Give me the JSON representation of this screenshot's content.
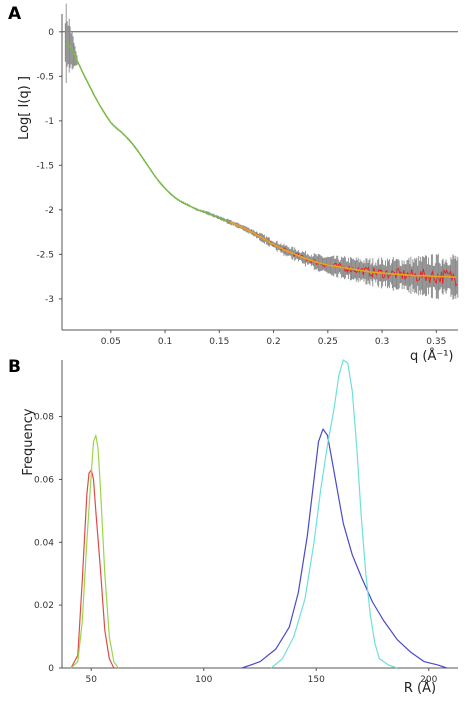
{
  "chart_data": [
    {
      "panel_label": "A",
      "type": "line",
      "xlabel": "q (Å⁻¹)",
      "ylabel": "Log[ I(q) ]",
      "xlim": [
        0.005,
        0.37
      ],
      "ylim": [
        -3.35,
        0.2
      ],
      "xticks": [
        0.05,
        0.1,
        0.15,
        0.2,
        0.25,
        0.3,
        0.35
      ],
      "xtick_labels": [
        "0.05",
        "0.1",
        "0.15",
        "0.2",
        "0.25",
        "0.3",
        "0.35"
      ],
      "yticks": [
        0,
        -0.5,
        -1,
        -1.5,
        -2,
        -2.5,
        -3
      ],
      "ytick_labels": [
        "0",
        "-0.5",
        "-1",
        "-1.5",
        "-2",
        "-2.5",
        "-3"
      ],
      "reference_line": 0,
      "curve": {
        "x": [
          0.008,
          0.012,
          0.016,
          0.02,
          0.025,
          0.03,
          0.035,
          0.04,
          0.045,
          0.05,
          0.055,
          0.06,
          0.065,
          0.07,
          0.075,
          0.08,
          0.085,
          0.09,
          0.095,
          0.1,
          0.105,
          0.11,
          0.115,
          0.12,
          0.125,
          0.13,
          0.14,
          0.15,
          0.16,
          0.17,
          0.18,
          0.19,
          0.2,
          0.21,
          0.22,
          0.23,
          0.24,
          0.25,
          0.26,
          0.27,
          0.28,
          0.29,
          0.3,
          0.31,
          0.32,
          0.33,
          0.34,
          0.35,
          0.36,
          0.37
        ],
        "y": [
          -0.12,
          -0.16,
          -0.25,
          -0.35,
          -0.48,
          -0.6,
          -0.72,
          -0.83,
          -0.93,
          -1.02,
          -1.08,
          -1.13,
          -1.19,
          -1.26,
          -1.34,
          -1.43,
          -1.52,
          -1.61,
          -1.69,
          -1.76,
          -1.82,
          -1.87,
          -1.91,
          -1.94,
          -1.97,
          -2.0,
          -2.04,
          -2.09,
          -2.14,
          -2.19,
          -2.25,
          -2.32,
          -2.39,
          -2.45,
          -2.5,
          -2.55,
          -2.59,
          -2.62,
          -2.64,
          -2.66,
          -2.68,
          -2.7,
          -2.71,
          -2.72,
          -2.73,
          -2.74,
          -2.74,
          -2.75,
          -2.75,
          -2.76
        ]
      },
      "series_colors": {
        "data_error": "#8a8a8a",
        "data": "#e8201c",
        "fit_1": "#74c043",
        "fit_2": "#f0a020"
      }
    },
    {
      "panel_label": "B",
      "type": "line",
      "xlabel": "R (Å)",
      "ylabel": "Frequency",
      "xlim": [
        37,
        213
      ],
      "ylim": [
        0,
        0.098
      ],
      "xticks": [
        50,
        100,
        150,
        200
      ],
      "xtick_labels": [
        "50",
        "100",
        "150",
        "200"
      ],
      "yticks": [
        0,
        0.02,
        0.04,
        0.06,
        0.08
      ],
      "ytick_labels": [
        "0",
        "0.02",
        "0.04",
        "0.06",
        "0.08"
      ],
      "series": [
        {
          "color": "#e04a4a",
          "x": [
            41,
            44,
            46,
            48,
            49,
            50,
            51,
            52,
            54,
            56,
            58,
            60
          ],
          "y": [
            0,
            0.004,
            0.028,
            0.055,
            0.062,
            0.063,
            0.06,
            0.05,
            0.032,
            0.012,
            0.003,
            0
          ]
        },
        {
          "color": "#9ad64a",
          "x": [
            41,
            44,
            46,
            48,
            50,
            51,
            52,
            53,
            54,
            56,
            58,
            60,
            62
          ],
          "y": [
            0,
            0.002,
            0.015,
            0.04,
            0.062,
            0.072,
            0.074,
            0.07,
            0.058,
            0.03,
            0.01,
            0.002,
            0
          ]
        },
        {
          "color": "#4a4ac8",
          "x": [
            117,
            125,
            132,
            138,
            142,
            146,
            149,
            151,
            153,
            155,
            158,
            162,
            166,
            170,
            175,
            180,
            186,
            192,
            198,
            204,
            208
          ],
          "y": [
            0,
            0.002,
            0.006,
            0.013,
            0.024,
            0.042,
            0.06,
            0.072,
            0.076,
            0.074,
            0.062,
            0.046,
            0.036,
            0.029,
            0.021,
            0.015,
            0.009,
            0.005,
            0.002,
            0.001,
            0
          ]
        },
        {
          "color": "#6fe0d8",
          "x": [
            130,
            135,
            140,
            145,
            149,
            152,
            155,
            158,
            160,
            162,
            164,
            166,
            168,
            170,
            172,
            174,
            176,
            178,
            182,
            186
          ],
          "y": [
            0,
            0.003,
            0.01,
            0.022,
            0.04,
            0.057,
            0.071,
            0.083,
            0.093,
            0.098,
            0.097,
            0.088,
            0.07,
            0.048,
            0.03,
            0.017,
            0.008,
            0.003,
            0.001,
            0
          ]
        }
      ]
    }
  ]
}
